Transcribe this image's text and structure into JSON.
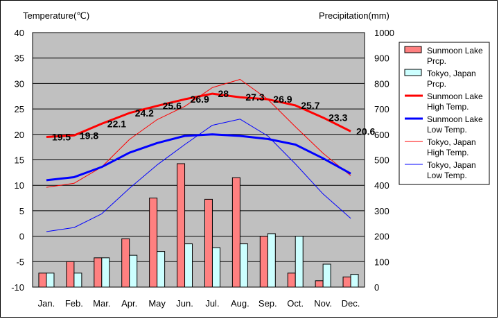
{
  "chart_data": {
    "type": "bar+line",
    "categories": [
      "Jan.",
      "Feb.",
      "Mar.",
      "Apr.",
      "May",
      "Jun.",
      "Jul.",
      "Aug.",
      "Sep.",
      "Oct.",
      "Nov.",
      "Dec."
    ],
    "left_axis": {
      "label": "Temperature(℃)",
      "range": [
        -10,
        40
      ],
      "ticks": [
        -10,
        -5,
        0,
        5,
        10,
        15,
        20,
        25,
        30,
        35,
        40
      ]
    },
    "right_axis": {
      "label": "Precipitation(mm)",
      "range": [
        0,
        1000
      ],
      "ticks": [
        0,
        100,
        200,
        300,
        400,
        500,
        600,
        700,
        800,
        900,
        1000
      ]
    },
    "bars": [
      {
        "name": "Sunmoon Lake Prcp.",
        "color": "#FF8080",
        "axis": "right",
        "values": [
          55,
          100,
          115,
          190,
          350,
          485,
          345,
          430,
          200,
          55,
          25,
          40
        ]
      },
      {
        "name": "Tokyo, Japan Prcp.",
        "color": "#CCFFFF",
        "axis": "right",
        "values": [
          55,
          55,
          115,
          125,
          140,
          170,
          155,
          170,
          210,
          200,
          90,
          50
        ]
      }
    ],
    "lines": [
      {
        "name": "Sunmoon Lake High Temp.",
        "color": "#FF0000",
        "width": 3,
        "axis": "left",
        "values": [
          19.5,
          19.8,
          22.1,
          24.2,
          25.6,
          26.9,
          28,
          27.3,
          26.9,
          25.7,
          23.3,
          20.6
        ],
        "labels": [
          "19.5",
          "19.8",
          "22.1",
          "24.2",
          "25.6",
          "26.9",
          "28",
          "27.3",
          "26.9",
          "25.7",
          "23.3",
          "20.6"
        ]
      },
      {
        "name": "Sunmoon Lake Low Temp.",
        "color": "#0000FF",
        "width": 3,
        "axis": "left",
        "values": [
          11,
          11.6,
          13.6,
          16.4,
          18.3,
          19.7,
          20,
          19.7,
          19.1,
          18,
          15.3,
          12.3
        ]
      },
      {
        "name": "Tokyo, Japan High Temp.",
        "color": "#FF0000",
        "width": 1,
        "axis": "left",
        "values": [
          9.6,
          10.4,
          13.6,
          19,
          22.9,
          25.5,
          29.2,
          30.8,
          26.9,
          21.5,
          16.3,
          11.9
        ]
      },
      {
        "name": "Tokyo, Japan Low Temp.",
        "color": "#0000FF",
        "width": 1,
        "axis": "left",
        "values": [
          0.9,
          1.7,
          4.4,
          9.4,
          14,
          18,
          21.8,
          23,
          19.7,
          14.2,
          8.3,
          3.5
        ]
      }
    ],
    "legend": {
      "position": "right",
      "entries": [
        {
          "type": "bar",
          "color": "#FF8080",
          "lines": [
            "Sunmoon Lake",
            "Prcp."
          ]
        },
        {
          "type": "bar",
          "color": "#CCFFFF",
          "lines": [
            "Tokyo, Japan",
            "Prcp."
          ]
        },
        {
          "type": "line",
          "color": "#FF0000",
          "width": 3,
          "lines": [
            "Sunmoon Lake",
            "High Temp."
          ]
        },
        {
          "type": "line",
          "color": "#0000FF",
          "width": 3,
          "lines": [
            "Sunmoon Lake",
            "Low Temp."
          ]
        },
        {
          "type": "line",
          "color": "#FF0000",
          "width": 1,
          "lines": [
            "Tokyo, Japan",
            "High Temp."
          ]
        },
        {
          "type": "line",
          "color": "#0000FF",
          "width": 1,
          "lines": [
            "Tokyo, Japan",
            "Low Temp."
          ]
        }
      ]
    },
    "plot_background": "#C0C0C0",
    "grid": true
  }
}
